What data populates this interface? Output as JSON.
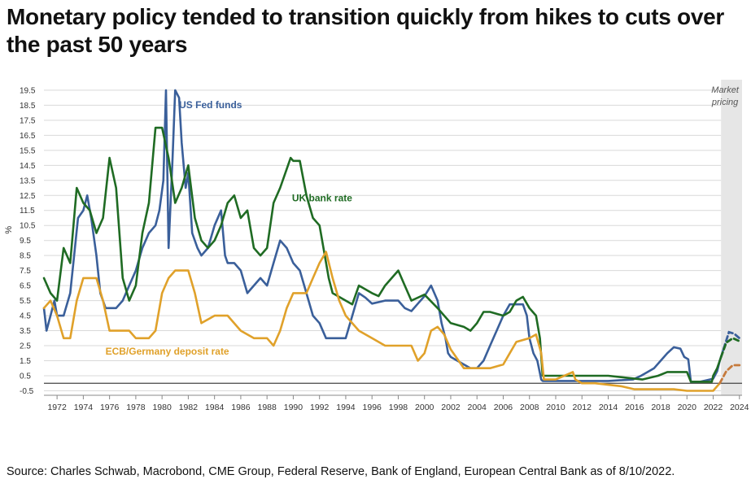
{
  "page": {
    "title": "Monetary policy tended to transition quickly from hikes to cuts over the past 50 years",
    "source": "Source: Charles Schwab, Macrobond, CME Group, Federal Reserve, Bank of England, European Central Bank as of 8/10/2022."
  },
  "chart_data": {
    "type": "line",
    "title": "Monetary policy tended to transition quickly from hikes to cuts over the past 50 years",
    "xlabel": "",
    "ylabel": "%",
    "xlim": [
      1971,
      2024.2
    ],
    "ylim": [
      -0.8,
      20.2
    ],
    "x_ticks": [
      "1972",
      "1974",
      "1976",
      "1978",
      "1980",
      "1982",
      "1984",
      "1986",
      "1988",
      "1990",
      "1992",
      "1994",
      "1996",
      "1998",
      "2000",
      "2002",
      "2004",
      "2006",
      "2008",
      "2010",
      "2012",
      "2014",
      "2016",
      "2018",
      "2020",
      "2022",
      "2024"
    ],
    "y_ticks": [
      "-0.5",
      "0.5",
      "1.5",
      "2.5",
      "3.5",
      "4.5",
      "5.5",
      "6.5",
      "7.5",
      "8.5",
      "9.5",
      "10.5",
      "11.5",
      "12.5",
      "13.5",
      "14.5",
      "15.5",
      "16.5",
      "17.5",
      "18.5",
      "19.5"
    ],
    "grid": true,
    "shaded_region": {
      "label_line1": "Market",
      "label_line2": "pricing",
      "x_start": 2022.6,
      "x_end": 2024.2,
      "color": "#e6e6e6"
    },
    "series": [
      {
        "name": "US Fed funds",
        "label": "US Fed funds",
        "color": "#3a5f9a",
        "x": [
          1971.0,
          1971.2,
          1971.5,
          1971.8,
          1972.0,
          1972.5,
          1973.0,
          1973.3,
          1973.6,
          1974.0,
          1974.3,
          1974.6,
          1975.0,
          1975.3,
          1975.7,
          1976.0,
          1976.5,
          1977.0,
          1977.5,
          1978.0,
          1978.5,
          1979.0,
          1979.5,
          1979.8,
          1980.1,
          1980.3,
          1980.5,
          1980.8,
          1981.0,
          1981.3,
          1981.5,
          1981.8,
          1982.0,
          1982.3,
          1982.7,
          1983.0,
          1983.5,
          1984.0,
          1984.5,
          1984.8,
          1985.0,
          1985.5,
          1986.0,
          1986.5,
          1987.0,
          1987.5,
          1988.0,
          1988.5,
          1989.0,
          1989.5,
          1990.0,
          1990.5,
          1991.0,
          1991.5,
          1992.0,
          1992.5,
          1993.0,
          1994.0,
          1994.5,
          1995.0,
          1995.5,
          1996.0,
          1997.0,
          1998.0,
          1998.5,
          1999.0,
          1999.5,
          2000.0,
          2000.5,
          2001.0,
          2001.3,
          2001.6,
          2001.8,
          2002.0,
          2003.0,
          2003.5,
          2004.0,
          2004.5,
          2005.0,
          2005.5,
          2006.0,
          2006.5,
          2007.0,
          2007.5,
          2007.8,
          2008.0,
          2008.3,
          2008.6,
          2008.9,
          2009.0,
          2010.0,
          2012.0,
          2014.0,
          2015.9,
          2016.5,
          2017.0,
          2017.5,
          2018.0,
          2018.5,
          2019.0,
          2019.5,
          2019.8,
          2020.1,
          2020.3,
          2021.0,
          2022.0,
          2022.3,
          2022.5,
          2022.8
        ],
        "y": [
          5.0,
          3.5,
          4.5,
          5.5,
          4.5,
          4.5,
          6.0,
          8.5,
          11.0,
          11.5,
          12.5,
          11.0,
          8.5,
          6.0,
          5.0,
          5.0,
          5.0,
          5.5,
          6.5,
          7.5,
          9.0,
          10.0,
          10.5,
          11.5,
          13.5,
          19.5,
          9.0,
          15.0,
          19.5,
          19.0,
          16.0,
          13.0,
          14.0,
          10.0,
          9.0,
          8.5,
          9.0,
          10.5,
          11.5,
          8.5,
          8.0,
          8.0,
          7.5,
          6.0,
          6.5,
          7.0,
          6.5,
          8.0,
          9.5,
          9.0,
          8.0,
          7.5,
          6.0,
          4.5,
          4.0,
          3.0,
          3.0,
          3.0,
          4.5,
          6.0,
          5.7,
          5.3,
          5.5,
          5.5,
          5.0,
          4.8,
          5.3,
          5.8,
          6.5,
          5.5,
          4.0,
          3.0,
          2.0,
          1.75,
          1.25,
          1.0,
          1.0,
          1.5,
          2.5,
          3.5,
          4.5,
          5.25,
          5.25,
          5.25,
          4.5,
          3.0,
          2.0,
          1.5,
          0.25,
          0.15,
          0.15,
          0.15,
          0.15,
          0.25,
          0.5,
          0.75,
          1.0,
          1.5,
          2.0,
          2.4,
          2.3,
          1.75,
          1.6,
          0.1,
          0.1,
          0.3,
          0.8,
          1.5,
          2.3
        ]
      },
      {
        "name": "UK bank rate",
        "label": "UK bank rate",
        "color": "#1f6b23",
        "x": [
          1971.0,
          1971.5,
          1972.0,
          1972.5,
          1973.0,
          1973.5,
          1974.0,
          1974.5,
          1975.0,
          1975.5,
          1976.0,
          1976.5,
          1977.0,
          1977.5,
          1978.0,
          1978.5,
          1979.0,
          1979.5,
          1980.0,
          1980.5,
          1981.0,
          1981.5,
          1982.0,
          1982.5,
          1983.0,
          1983.5,
          1984.0,
          1984.5,
          1985.0,
          1985.5,
          1986.0,
          1986.5,
          1987.0,
          1987.5,
          1988.0,
          1988.5,
          1989.0,
          1989.8,
          1990.0,
          1990.5,
          1991.0,
          1991.5,
          1992.0,
          1992.7,
          1993.0,
          1994.0,
          1994.5,
          1995.0,
          1996.0,
          1996.5,
          1997.0,
          1997.5,
          1998.0,
          1998.5,
          1999.0,
          2000.0,
          2001.0,
          2002.0,
          2003.0,
          2003.5,
          2004.0,
          2004.5,
          2005.0,
          2006.0,
          2006.5,
          2007.0,
          2007.5,
          2008.0,
          2008.5,
          2008.8,
          2009.0,
          2010.0,
          2012.0,
          2014.0,
          2016.6,
          2017.8,
          2018.5,
          2019.0,
          2020.0,
          2020.3,
          2021.0,
          2021.9,
          2022.0,
          2022.3,
          2022.6
        ],
        "y": [
          7.0,
          6.0,
          5.5,
          9.0,
          8.0,
          13.0,
          12.0,
          11.5,
          10.0,
          11.0,
          15.0,
          13.0,
          7.0,
          5.5,
          6.5,
          10.0,
          12.0,
          17.0,
          17.0,
          15.0,
          12.0,
          13.0,
          14.5,
          11.0,
          9.5,
          9.0,
          9.5,
          10.5,
          12.0,
          12.5,
          11.0,
          11.5,
          9.0,
          8.5,
          9.0,
          12.0,
          13.0,
          15.0,
          14.8,
          14.8,
          12.5,
          11.0,
          10.5,
          7.0,
          6.0,
          5.5,
          5.25,
          6.5,
          6.0,
          5.8,
          6.5,
          7.0,
          7.5,
          6.5,
          5.5,
          5.9,
          5.0,
          4.0,
          3.75,
          3.5,
          4.0,
          4.75,
          4.75,
          4.5,
          4.75,
          5.5,
          5.75,
          5.0,
          4.5,
          3.0,
          0.5,
          0.5,
          0.5,
          0.5,
          0.25,
          0.5,
          0.75,
          0.75,
          0.75,
          0.1,
          0.1,
          0.1,
          0.5,
          1.0,
          1.75
        ]
      },
      {
        "name": "ECB/Germany deposit rate",
        "label": "ECB/Germany deposit rate",
        "color": "#e0a12a",
        "x": [
          1971.0,
          1971.5,
          1972.0,
          1972.5,
          1973.0,
          1973.5,
          1974.0,
          1975.0,
          1975.5,
          1976.0,
          1977.0,
          1977.5,
          1978.0,
          1979.0,
          1979.5,
          1980.0,
          1980.5,
          1981.0,
          1982.0,
          1982.5,
          1983.0,
          1984.0,
          1985.0,
          1986.0,
          1987.0,
          1988.0,
          1988.5,
          1989.0,
          1989.5,
          1990.0,
          1991.0,
          1991.5,
          1992.0,
          1992.5,
          1993.0,
          1993.5,
          1994.0,
          1995.0,
          1996.0,
          1997.0,
          1998.0,
          1999.0,
          1999.5,
          2000.0,
          2000.5,
          2001.0,
          2001.5,
          2002.0,
          2003.0,
          2004.0,
          2005.0,
          2006.0,
          2006.5,
          2007.0,
          2008.0,
          2008.5,
          2008.9,
          2009.1,
          2010.0,
          2011.3,
          2011.5,
          2012.0,
          2013.0,
          2014.0,
          2015.0,
          2016.0,
          2017.0,
          2019.0,
          2020.0,
          2022.0,
          2022.5
        ],
        "y": [
          5.0,
          5.5,
          4.5,
          3.0,
          3.0,
          5.5,
          7.0,
          7.0,
          5.5,
          3.5,
          3.5,
          3.5,
          3.0,
          3.0,
          3.5,
          6.0,
          7.0,
          7.5,
          7.5,
          6.0,
          4.0,
          4.5,
          4.5,
          3.5,
          3.0,
          3.0,
          2.5,
          3.5,
          5.0,
          6.0,
          6.0,
          7.0,
          8.0,
          8.75,
          7.0,
          5.5,
          4.5,
          3.5,
          3.0,
          2.5,
          2.5,
          2.5,
          1.5,
          2.0,
          3.5,
          3.75,
          3.25,
          2.25,
          1.0,
          1.0,
          1.0,
          1.25,
          2.0,
          2.75,
          3.0,
          3.25,
          2.0,
          0.25,
          0.25,
          0.75,
          0.25,
          0.0,
          0.0,
          -0.1,
          -0.2,
          -0.4,
          -0.4,
          -0.4,
          -0.5,
          -0.5,
          0.0
        ]
      }
    ],
    "projections": [
      {
        "name": "US Fed funds market pricing",
        "color": "#3a5f9a",
        "x": [
          2022.8,
          2023.2,
          2023.6,
          2024.0
        ],
        "y": [
          2.3,
          3.4,
          3.3,
          3.0
        ]
      },
      {
        "name": "UK bank rate market pricing",
        "color": "#1f6b23",
        "x": [
          2022.6,
          2023.0,
          2023.5,
          2024.0
        ],
        "y": [
          1.75,
          2.7,
          3.0,
          2.8
        ]
      },
      {
        "name": "ECB/Germany deposit rate market pricing",
        "color": "#c67a3c",
        "x": [
          2022.5,
          2023.0,
          2023.5,
          2024.0
        ],
        "y": [
          0.0,
          0.8,
          1.2,
          1.2
        ]
      }
    ]
  }
}
